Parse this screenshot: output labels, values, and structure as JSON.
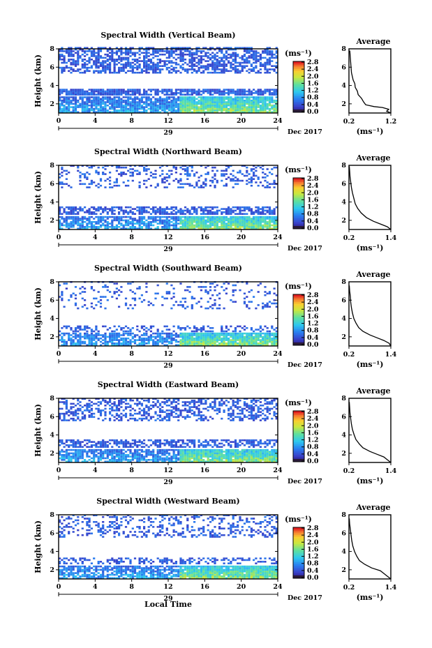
{
  "figure": {
    "xlabel": "Local Time",
    "date_label": "Dec 2017",
    "day_label": "29",
    "colorbar_unit": "(ms⁻¹)",
    "colorbar_ticks": [
      "2.8",
      "2.4",
      "2.0",
      "1.6",
      "1.2",
      "0.8",
      "0.4",
      "0.0"
    ],
    "average_title": "Average",
    "average_unit": "(ms⁻¹)"
  },
  "chart_data": [
    {
      "type": "heatmap",
      "title": "Spectral Width (Vertical Beam)",
      "ylabel": "Height (km)",
      "xlim": [
        0,
        24
      ],
      "xticks": [
        0,
        4,
        8,
        12,
        16,
        20,
        24
      ],
      "ylim": [
        1,
        8
      ],
      "yticks": [
        2,
        4,
        6,
        8
      ],
      "clim": [
        0.0,
        2.8
      ],
      "layers": [
        {
          "h0": 5.3,
          "h1": 8.0,
          "level": 0.35,
          "density": 0.6
        },
        {
          "h0": 2.9,
          "h1": 3.6,
          "level": 0.35,
          "density": 0.85
        },
        {
          "h0": 1.0,
          "h1": 2.7,
          "level": 1.0,
          "density": 0.85
        }
      ],
      "average": {
        "title": "Average",
        "xlim": [
          0.2,
          1.2
        ],
        "xticks": [
          "0.2",
          "1.2"
        ],
        "ylim": [
          1,
          8
        ],
        "yticks": [
          2,
          4,
          6,
          8
        ],
        "profile": [
          [
            1.2,
            1.0
          ],
          [
            1.1,
            1.2
          ],
          [
            1.15,
            1.4
          ],
          [
            1.0,
            1.6
          ],
          [
            0.8,
            1.7
          ],
          [
            0.6,
            1.9
          ],
          [
            0.55,
            2.2
          ],
          [
            0.5,
            2.6
          ],
          [
            0.42,
            3.0
          ],
          [
            0.4,
            3.4
          ],
          [
            0.35,
            3.8
          ],
          [
            0.34,
            4.2
          ],
          [
            0.3,
            4.6
          ],
          [
            0.28,
            5.0
          ],
          [
            0.26,
            5.4
          ],
          [
            0.25,
            6.0
          ],
          [
            0.24,
            6.6
          ],
          [
            0.23,
            7.2
          ],
          [
            0.22,
            7.8
          ]
        ]
      }
    },
    {
      "type": "heatmap",
      "title": "Spectral Width (Northward Beam)",
      "ylabel": "Height (km)",
      "xlim": [
        0,
        24
      ],
      "xticks": [
        0,
        4,
        8,
        12,
        16,
        20,
        24
      ],
      "ylim": [
        1,
        8
      ],
      "yticks": [
        2,
        4,
        6,
        8
      ],
      "clim": [
        0.0,
        2.8
      ],
      "layers": [
        {
          "h0": 5.5,
          "h1": 8.0,
          "level": 0.35,
          "density": 0.25
        },
        {
          "h0": 2.6,
          "h1": 3.4,
          "level": 0.35,
          "density": 0.65
        },
        {
          "h0": 1.0,
          "h1": 2.4,
          "level": 1.0,
          "density": 0.75
        }
      ],
      "average": {
        "title": "Average",
        "xlim": [
          0.2,
          1.4
        ],
        "xticks": [
          "0.2",
          "1.4"
        ],
        "ylim": [
          1,
          8
        ],
        "yticks": [
          2,
          4,
          6,
          8
        ],
        "profile": [
          [
            1.4,
            1.0
          ],
          [
            1.3,
            1.3
          ],
          [
            1.1,
            1.6
          ],
          [
            0.9,
            1.9
          ],
          [
            0.7,
            2.3
          ],
          [
            0.55,
            2.8
          ],
          [
            0.45,
            3.3
          ],
          [
            0.38,
            3.8
          ],
          [
            0.34,
            4.4
          ],
          [
            0.3,
            5.0
          ],
          [
            0.27,
            5.6
          ],
          [
            0.25,
            6.2
          ],
          [
            0.23,
            6.8
          ],
          [
            0.22,
            7.4
          ],
          [
            0.21,
            7.9
          ]
        ]
      }
    },
    {
      "type": "heatmap",
      "title": "Spectral Width (Southward Beam)",
      "ylabel": "Height (km)",
      "xlim": [
        0,
        24
      ],
      "xticks": [
        0,
        4,
        8,
        12,
        16,
        20,
        24
      ],
      "ylim": [
        1,
        8
      ],
      "yticks": [
        2,
        4,
        6,
        8
      ],
      "clim": [
        0.0,
        2.8
      ],
      "layers": [
        {
          "h0": 5.0,
          "h1": 8.0,
          "level": 0.35,
          "density": 0.15
        },
        {
          "h0": 2.5,
          "h1": 3.2,
          "level": 0.35,
          "density": 0.35
        },
        {
          "h0": 1.0,
          "h1": 2.3,
          "level": 1.0,
          "density": 0.7
        }
      ],
      "average": {
        "title": "Average",
        "xlim": [
          0.2,
          1.4
        ],
        "xticks": [
          "0.2",
          "1.4"
        ],
        "ylim": [
          1,
          8
        ],
        "yticks": [
          2,
          4,
          6,
          8
        ],
        "profile": [
          [
            1.4,
            1.0
          ],
          [
            1.35,
            1.3
          ],
          [
            1.2,
            1.6
          ],
          [
            1.0,
            1.9
          ],
          [
            0.8,
            2.2
          ],
          [
            0.6,
            2.6
          ],
          [
            0.48,
            3.0
          ],
          [
            0.4,
            3.5
          ],
          [
            0.34,
            4.0
          ],
          [
            0.3,
            4.6
          ],
          [
            0.27,
            5.2
          ],
          [
            0.25,
            5.8
          ],
          [
            0.24,
            6.4
          ],
          [
            0.22,
            7.0
          ],
          [
            0.21,
            7.6
          ]
        ]
      }
    },
    {
      "type": "heatmap",
      "title": "Spectral Width (Eastward Beam)",
      "ylabel": "Height (km)",
      "xlim": [
        0,
        24
      ],
      "xticks": [
        0,
        4,
        8,
        12,
        16,
        20,
        24
      ],
      "ylim": [
        1,
        8
      ],
      "yticks": [
        2,
        4,
        6,
        8
      ],
      "clim": [
        0.0,
        2.8
      ],
      "layers": [
        {
          "h0": 5.5,
          "h1": 8.0,
          "level": 0.35,
          "density": 0.45
        },
        {
          "h0": 2.6,
          "h1": 3.4,
          "level": 0.35,
          "density": 0.6
        },
        {
          "h0": 1.0,
          "h1": 2.4,
          "level": 1.0,
          "density": 0.75
        }
      ],
      "average": {
        "title": "Average",
        "xlim": [
          0.2,
          1.4
        ],
        "xticks": [
          "0.2",
          "1.4"
        ],
        "ylim": [
          1,
          8
        ],
        "yticks": [
          2,
          4,
          6,
          8
        ],
        "profile": [
          [
            1.4,
            1.0
          ],
          [
            1.3,
            1.3
          ],
          [
            1.2,
            1.6
          ],
          [
            1.0,
            1.9
          ],
          [
            0.8,
            2.2
          ],
          [
            0.6,
            2.6
          ],
          [
            0.5,
            3.0
          ],
          [
            0.4,
            3.5
          ],
          [
            0.35,
            4.0
          ],
          [
            0.3,
            4.6
          ],
          [
            0.27,
            5.2
          ],
          [
            0.25,
            5.8
          ],
          [
            0.23,
            6.4
          ],
          [
            0.22,
            7.0
          ],
          [
            0.21,
            7.6
          ]
        ]
      }
    },
    {
      "type": "heatmap",
      "title": "Spectral Width (Westward Beam)",
      "ylabel": "Height (km)",
      "xlim": [
        0,
        24
      ],
      "xticks": [
        0,
        4,
        8,
        12,
        16,
        20,
        24
      ],
      "ylim": [
        1,
        8
      ],
      "yticks": [
        2,
        4,
        6,
        8
      ],
      "clim": [
        0.0,
        2.8
      ],
      "layers": [
        {
          "h0": 5.5,
          "h1": 8.0,
          "level": 0.35,
          "density": 0.3
        },
        {
          "h0": 2.6,
          "h1": 3.3,
          "level": 0.35,
          "density": 0.4
        },
        {
          "h0": 1.0,
          "h1": 2.4,
          "level": 1.0,
          "density": 0.75
        }
      ],
      "average": {
        "title": "Average",
        "xlim": [
          0.2,
          1.4
        ],
        "xticks": [
          "0.2",
          "1.4"
        ],
        "ylim": [
          1,
          8
        ],
        "yticks": [
          2,
          4,
          6,
          8
        ],
        "profile": [
          [
            1.4,
            1.0
          ],
          [
            1.3,
            1.3
          ],
          [
            1.2,
            1.6
          ],
          [
            1.1,
            1.9
          ],
          [
            0.85,
            2.2
          ],
          [
            0.65,
            2.6
          ],
          [
            0.5,
            3.0
          ],
          [
            0.42,
            3.5
          ],
          [
            0.36,
            4.0
          ],
          [
            0.31,
            4.6
          ],
          [
            0.28,
            5.2
          ],
          [
            0.26,
            5.8
          ],
          [
            0.24,
            6.4
          ],
          [
            0.22,
            7.0
          ],
          [
            0.21,
            7.6
          ]
        ]
      }
    }
  ]
}
